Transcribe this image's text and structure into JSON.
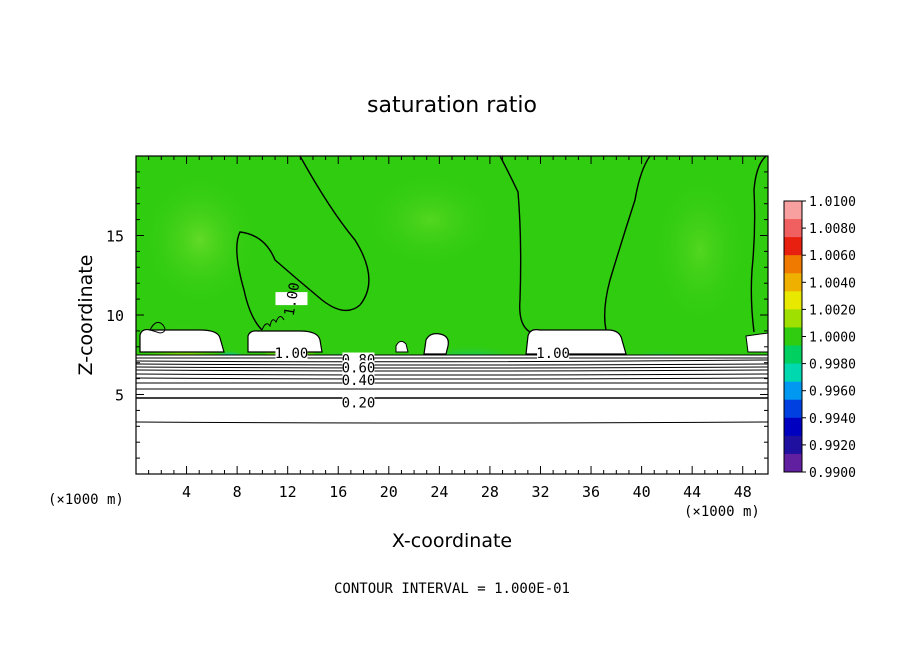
{
  "chart_data": {
    "type": "heatmap",
    "title": "saturation ratio",
    "xlabel": "X-coordinate",
    "ylabel": "Z-coordinate",
    "x_unit_left": "(×1000 m)",
    "x_unit_right": "(×1000 m)",
    "xlim": [
      0,
      50
    ],
    "ylim": [
      0,
      20
    ],
    "xticks": [
      "4",
      "8",
      "12",
      "16",
      "20",
      "24",
      "28",
      "32",
      "36",
      "40",
      "44",
      "48"
    ],
    "xtick_values": [
      4,
      8,
      12,
      16,
      20,
      24,
      28,
      32,
      36,
      40,
      44,
      48
    ],
    "yticks": [
      "5",
      "10",
      "15"
    ],
    "ytick_values": [
      5,
      10,
      15
    ],
    "colorbar": {
      "labels": [
        "1.0100",
        "1.0080",
        "1.0060",
        "1.0040",
        "1.0020",
        "1.0000",
        "0.9980",
        "0.9960",
        "0.9940",
        "0.9920",
        "0.9900"
      ],
      "colors": [
        "#f8a0a0",
        "#f06060",
        "#e82010",
        "#f07a00",
        "#f0b000",
        "#e8e800",
        "#a0e000",
        "#30cc10",
        "#00d060",
        "#00d8b0",
        "#0098f0",
        "#0040e0",
        "#0000c0",
        "#2010a0",
        "#6020a0"
      ]
    },
    "contour_labels": [
      {
        "text": "1.00",
        "x": 12.3,
        "y": 11.0
      },
      {
        "text": "1.00",
        "x": 12.3,
        "y": 7.6
      },
      {
        "text": "1.00",
        "x": 33.0,
        "y": 7.6
      },
      {
        "text": "0.80",
        "x": 17.6,
        "y": 7.2
      },
      {
        "text": "0.60",
        "x": 17.6,
        "y": 6.7
      },
      {
        "text": "0.40",
        "x": 17.6,
        "y": 5.9
      },
      {
        "text": "0.20",
        "x": 17.6,
        "y": 4.5
      }
    ],
    "annotation": "CONTOUR INTERVAL = 1.000E-01"
  }
}
